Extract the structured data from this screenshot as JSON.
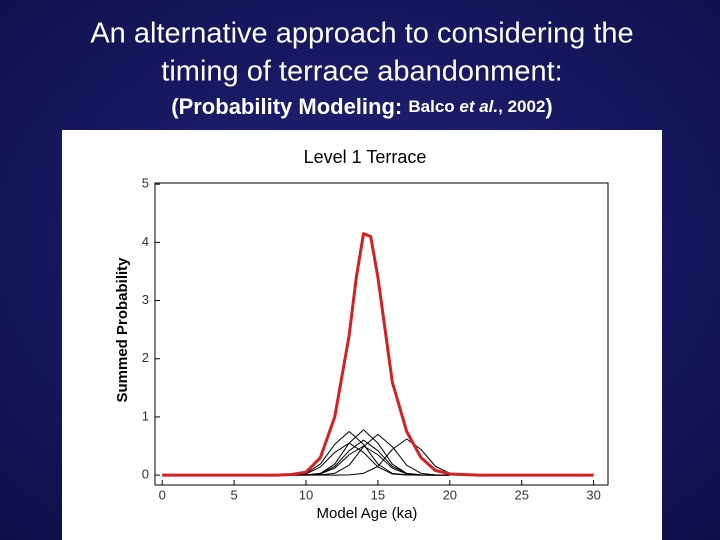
{
  "slide": {
    "title_lines": [
      "An alternative approach to considering the",
      "timing of terrace abandonment:"
    ],
    "subtitle_parts": [
      "(Probability Modeling: ",
      "Balco ",
      "et al.",
      ", 2002",
      ")"
    ]
  },
  "chart_data": {
    "type": "line",
    "title": "Level 1 Terrace",
    "x_label": "Model Age (ka)",
    "y_label": "Summed Probability",
    "xlim": [
      -0.5,
      31
    ],
    "ylim": [
      -0.17,
      5.02
    ],
    "xticks": [
      0,
      5,
      10,
      15,
      20,
      25,
      30
    ],
    "yticks": [
      0,
      1,
      2,
      3,
      4,
      5
    ],
    "series": [
      {
        "color": "#000000",
        "x": [
          9,
          10,
          11,
          12,
          13,
          14,
          15,
          16,
          17,
          18,
          19,
          20
        ],
        "values": [
          0.003,
          0.03,
          0.19,
          0.53,
          0.75,
          0.53,
          0.19,
          0.03,
          0.003,
          0,
          0,
          0
        ]
      },
      {
        "color": "#000000",
        "x": [
          9,
          10,
          11,
          12,
          13,
          14,
          15,
          16,
          17,
          18,
          19,
          20
        ],
        "values": [
          0,
          0.003,
          0.03,
          0.19,
          0.55,
          0.78,
          0.55,
          0.19,
          0.03,
          0.003,
          0,
          0
        ]
      },
      {
        "color": "#000000",
        "x": [
          9,
          10,
          11,
          12,
          13,
          14,
          15,
          16,
          17,
          18,
          19,
          20
        ],
        "values": [
          0,
          0.002,
          0.03,
          0.15,
          0.42,
          0.6,
          0.42,
          0.15,
          0.03,
          0.002,
          0,
          0
        ]
      },
      {
        "color": "#000000",
        "x": [
          9,
          10,
          11,
          12,
          13,
          14,
          15,
          16,
          17,
          18,
          19,
          20
        ],
        "values": [
          0,
          0,
          0.003,
          0.03,
          0.17,
          0.49,
          0.7,
          0.49,
          0.17,
          0.03,
          0.003,
          0
        ]
      },
      {
        "color": "#000000",
        "x": [
          9,
          10,
          11,
          12,
          13,
          14,
          15,
          16,
          17,
          18,
          19,
          20
        ],
        "values": [
          0.002,
          0.02,
          0.14,
          0.39,
          0.55,
          0.39,
          0.14,
          0.02,
          0.002,
          0,
          0,
          0
        ]
      },
      {
        "color": "#000000",
        "x": [
          9,
          10,
          11,
          12,
          13,
          14,
          15,
          16,
          17,
          18,
          19,
          20
        ],
        "values": [
          0,
          0,
          0,
          0,
          0.003,
          0.03,
          0.15,
          0.44,
          0.62,
          0.44,
          0.15,
          0.03
        ]
      },
      {
        "color": "#000000",
        "x": [
          9,
          10,
          11,
          12,
          13,
          14,
          15,
          16,
          17,
          18,
          19,
          20
        ],
        "values": [
          0,
          0.002,
          0.02,
          0.12,
          0.35,
          0.5,
          0.35,
          0.12,
          0.02,
          0.002,
          0,
          0
        ]
      },
      {
        "color": "#d42020",
        "x": [
          0,
          8,
          9,
          10,
          11,
          12,
          13,
          13.5,
          14,
          14.5,
          15,
          15.5,
          16,
          17,
          18,
          19,
          20,
          22,
          30
        ],
        "values": [
          0,
          0,
          0.01,
          0.05,
          0.3,
          1.0,
          2.4,
          3.4,
          4.15,
          4.1,
          3.4,
          2.5,
          1.6,
          0.75,
          0.3,
          0.08,
          0.02,
          0,
          0
        ]
      }
    ]
  }
}
